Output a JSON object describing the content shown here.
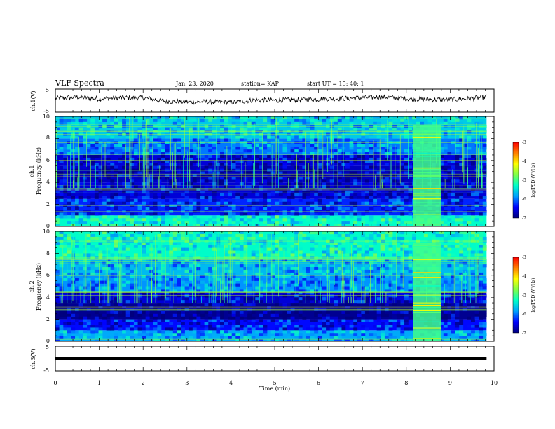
{
  "header": {
    "title": "VLF Spectra",
    "date": "Jan. 23, 2020",
    "station": "station= KAP",
    "start": "start UT =  15: 40: 1"
  },
  "colors": {
    "colormap": [
      "#00007a",
      "#0000ff",
      "#00a0ff",
      "#00ffc8",
      "#7dff4a",
      "#ffff00",
      "#ff8000",
      "#ff0000",
      "#ffffff"
    ],
    "trace": "#000000"
  },
  "chart_data": [
    {
      "type": "line",
      "name": "ch1-waveform",
      "ylabel": "ch.1(V)",
      "ylim": [
        -5,
        5
      ],
      "yticks": [
        "5",
        "-5"
      ],
      "xlim": [
        0,
        10
      ],
      "x": [
        0,
        0.5,
        1,
        1.5,
        2,
        2.5,
        3,
        3.5,
        4,
        4.5,
        5,
        5.5,
        6,
        6.5,
        7,
        7.5,
        8,
        8.5,
        9,
        9.5,
        9.83
      ],
      "y": [
        1.0,
        1.5,
        0.8,
        1.3,
        1.2,
        -0.2,
        -0.6,
        -0.5,
        -0.9,
        0.2,
        0.1,
        0.4,
        0.6,
        0.9,
        1.2,
        1.6,
        0.8,
        0.5,
        0.4,
        0.9,
        1.7
      ]
    },
    {
      "type": "heatmap",
      "name": "ch1-spectrogram",
      "ylabel": "ch.1",
      "ylabel2": "Frequency (kHz)",
      "ylim": [
        0,
        10
      ],
      "yticks": [
        "0",
        "2",
        "4",
        "6",
        "8",
        "10"
      ],
      "xlim": [
        0,
        10
      ],
      "data_end_min": 9.83,
      "colorbar": {
        "label": "log(PSD)(V²/Hz)",
        "range": [
          -7,
          -3
        ],
        "ticks": [
          "-3",
          "-4",
          "-5",
          "-6",
          "-7"
        ]
      },
      "bands_khz": [
        {
          "from": 0,
          "to": 1,
          "level": -5.3
        },
        {
          "from": 1,
          "to": 2.5,
          "level": -6.3
        },
        {
          "from": 2.5,
          "to": 4,
          "level": -6.6
        },
        {
          "from": 4,
          "to": 5.5,
          "level": -6.7
        },
        {
          "from": 5.5,
          "to": 6.5,
          "level": -6.6
        },
        {
          "from": 6.5,
          "to": 8,
          "level": -6.0
        },
        {
          "from": 8,
          "to": 10,
          "level": -5.6
        }
      ],
      "event": {
        "t_start": 8.15,
        "t_end": 8.8,
        "f_max_khz": 9.2,
        "level": -5.0
      }
    },
    {
      "type": "heatmap",
      "name": "ch2-spectrogram",
      "ylabel": "ch.2",
      "ylabel2": "Frequency (kHz)",
      "ylim": [
        0,
        10
      ],
      "yticks": [
        "0",
        "2",
        "4",
        "6",
        "8",
        "10"
      ],
      "xlim": [
        0,
        10
      ],
      "data_end_min": 9.83,
      "colorbar": {
        "label": "log(PSD)(V²/Hz)",
        "range": [
          -7,
          -3
        ],
        "ticks": [
          "-3",
          "-4",
          "-5",
          "-6",
          "-7"
        ]
      },
      "bands_khz": [
        {
          "from": 0,
          "to": 1,
          "level": -5.8
        },
        {
          "from": 1,
          "to": 2,
          "level": -6.4
        },
        {
          "from": 2,
          "to": 3.5,
          "level": -6.9
        },
        {
          "from": 3.5,
          "to": 4.5,
          "level": -6.6
        },
        {
          "from": 4.5,
          "to": 6,
          "level": -5.9
        },
        {
          "from": 6,
          "to": 7.5,
          "level": -5.7
        },
        {
          "from": 7.5,
          "to": 10,
          "level": -5.3
        }
      ],
      "event": {
        "t_start": 8.15,
        "t_end": 8.8,
        "f_max_khz": 9.0,
        "level": -5.0
      }
    },
    {
      "type": "line",
      "name": "ch3-waveform",
      "ylabel": "ch.3(V)",
      "ylim": [
        -5,
        5
      ],
      "yticks": [
        "5",
        "-5"
      ],
      "xlim": [
        0,
        10
      ],
      "x": [
        0,
        9.83
      ],
      "y": [
        0,
        0
      ],
      "xlabel": "Time (min)",
      "xticks": [
        "0",
        "1",
        "2",
        "3",
        "4",
        "5",
        "6",
        "7",
        "8",
        "9",
        "10"
      ]
    }
  ]
}
